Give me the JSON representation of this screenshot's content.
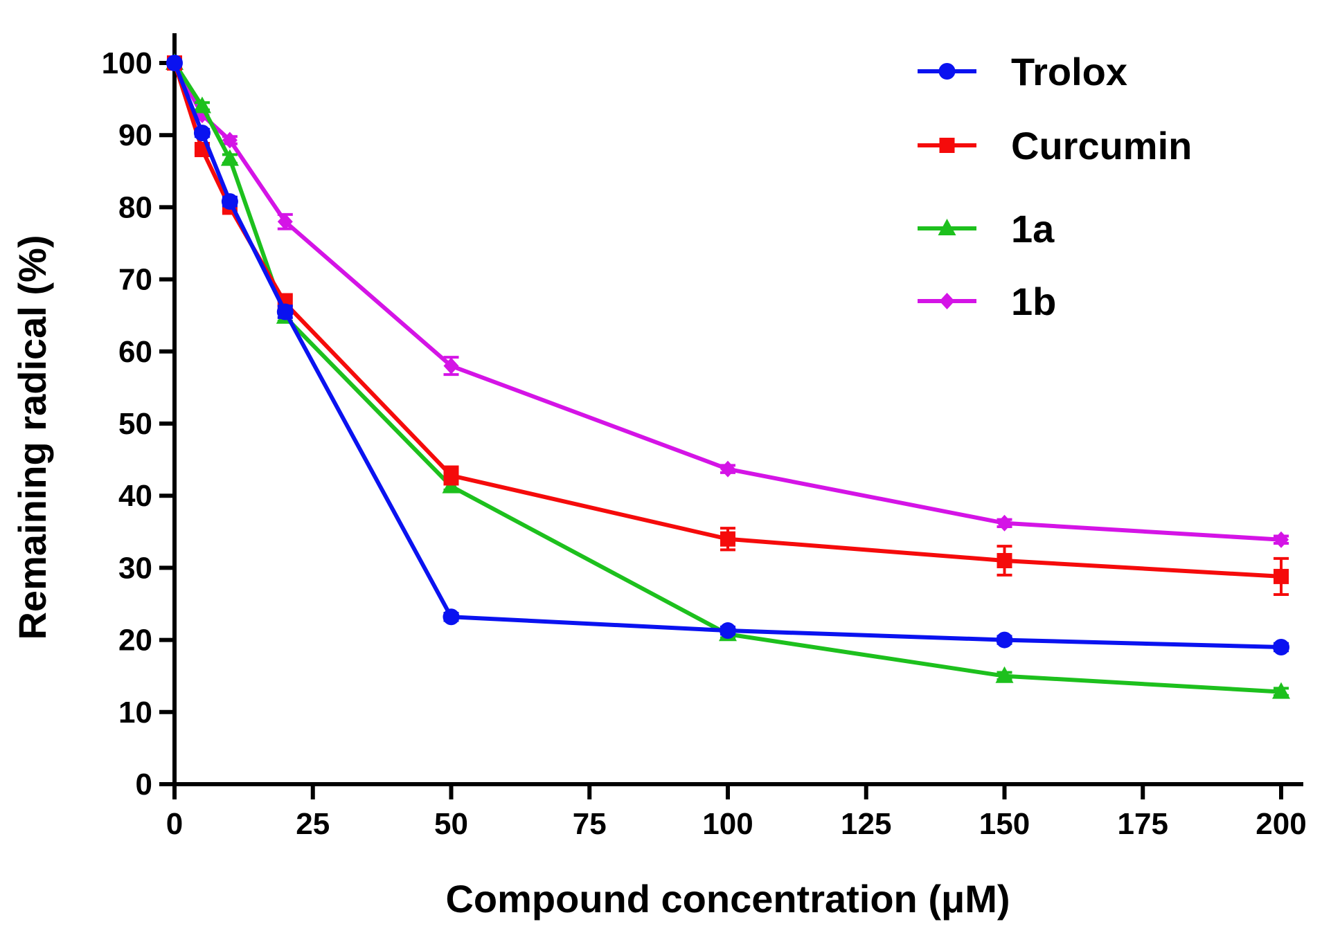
{
  "chart_data": {
    "type": "line",
    "xlabel": "Compound concentration (μM)",
    "ylabel": "Remaining radical (%)",
    "xlim": [
      0,
      200
    ],
    "ylim": [
      0,
      100
    ],
    "x_ticks": [
      0,
      25,
      50,
      75,
      100,
      125,
      150,
      175,
      200
    ],
    "y_ticks": [
      0,
      10,
      20,
      30,
      40,
      50,
      60,
      70,
      80,
      90,
      100
    ],
    "x_axis_piecewise_note": "axis is non-uniform: 0-50 step 25 per 2 ticks region; 50-200 step 50 per 2 ticks",
    "legend_position": "top-right",
    "grid": false,
    "series": [
      {
        "name": "Trolox",
        "color": "#0a12f0",
        "marker": "circle",
        "x": [
          0,
          5,
          10,
          20,
          50,
          100,
          150,
          200
        ],
        "y": [
          100,
          90.3,
          80.8,
          65.5,
          23.2,
          21.3,
          20.0,
          19.0
        ],
        "err": [
          0,
          0.5,
          0.6,
          0.8,
          0.5,
          0.5,
          0.5,
          0.5
        ]
      },
      {
        "name": "Curcumin",
        "color": "#f50b0b",
        "marker": "square",
        "x": [
          0,
          5,
          10,
          20,
          50,
          100,
          150,
          200
        ],
        "y": [
          100,
          88.0,
          80.0,
          66.7,
          42.8,
          34.0,
          31.0,
          28.8
        ],
        "err": [
          0,
          0.5,
          0.6,
          1.2,
          1.2,
          1.5,
          2.0,
          2.5
        ]
      },
      {
        "name": "1a",
        "color": "#1dc01d",
        "marker": "triangle",
        "x": [
          0,
          5,
          10,
          20,
          50,
          100,
          150,
          200
        ],
        "y": [
          100,
          94.0,
          86.7,
          64.8,
          41.3,
          20.8,
          15.0,
          12.8
        ],
        "err": [
          0,
          0.5,
          0.6,
          0.6,
          0.5,
          0.5,
          0.5,
          0.5
        ]
      },
      {
        "name": "1b",
        "color": "#d414e6",
        "marker": "diamond",
        "x": [
          0,
          5,
          10,
          20,
          50,
          100,
          150,
          200
        ],
        "y": [
          100,
          92.8,
          89.3,
          78.0,
          58.0,
          43.7,
          36.2,
          33.9
        ],
        "err": [
          0,
          0.5,
          0.5,
          1.0,
          1.2,
          0.5,
          0.5,
          0.5
        ]
      }
    ]
  }
}
